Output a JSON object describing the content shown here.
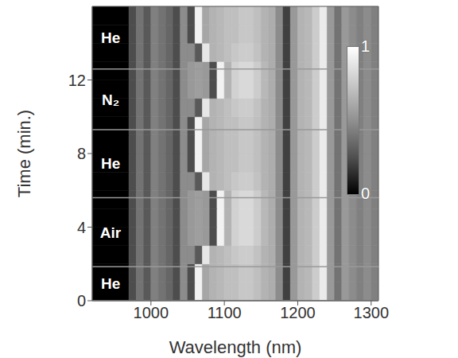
{
  "chart_data": {
    "type": "heatmap",
    "xlabel": "Wavelength (nm)",
    "ylabel": "Time (min.)",
    "xlim": [
      920,
      1310
    ],
    "ylim": [
      0,
      16
    ],
    "xticks": [
      1000,
      1100,
      1200,
      1300
    ],
    "yticks": [
      0,
      4,
      8,
      12
    ],
    "x_bins": [
      920,
      970,
      980,
      990,
      1000,
      1010,
      1020,
      1030,
      1040,
      1050,
      1060,
      1070,
      1080,
      1090,
      1100,
      1110,
      1120,
      1130,
      1140,
      1150,
      1160,
      1170,
      1180,
      1190,
      1200,
      1210,
      1220,
      1230,
      1240,
      1250,
      1260,
      1270,
      1280,
      1290,
      1300,
      1310
    ],
    "y_bins": [
      0,
      1,
      2,
      3,
      4,
      5,
      6,
      7,
      8,
      9,
      10,
      11,
      12,
      13,
      14,
      15,
      16
    ],
    "cells": [
      [
        0,
        0.3,
        0.45,
        0.35,
        0.5,
        0.45,
        0.4,
        0.3,
        0.55,
        0.3,
        0.95,
        0.65,
        0.7,
        0.72,
        0.75,
        0.75,
        0.78,
        0.78,
        0.75,
        0.7,
        0.68,
        0.55,
        0.25,
        0.6,
        0.7,
        0.72,
        0.8,
        0.92,
        0.6,
        0.45,
        0.6,
        0.55,
        0.5,
        0.55,
        0.5
      ],
      [
        0,
        0.3,
        0.45,
        0.35,
        0.5,
        0.45,
        0.4,
        0.3,
        0.55,
        0.3,
        0.95,
        0.65,
        0.7,
        0.72,
        0.75,
        0.75,
        0.78,
        0.78,
        0.75,
        0.7,
        0.68,
        0.55,
        0.25,
        0.6,
        0.7,
        0.72,
        0.8,
        0.92,
        0.6,
        0.45,
        0.6,
        0.55,
        0.5,
        0.55,
        0.5
      ],
      [
        0,
        0.3,
        0.45,
        0.35,
        0.5,
        0.45,
        0.4,
        0.3,
        0.55,
        0.55,
        0.35,
        0.9,
        0.7,
        0.72,
        0.75,
        0.78,
        0.8,
        0.8,
        0.76,
        0.7,
        0.68,
        0.55,
        0.25,
        0.6,
        0.7,
        0.72,
        0.8,
        0.92,
        0.6,
        0.45,
        0.6,
        0.55,
        0.5,
        0.55,
        0.5
      ],
      [
        0,
        0.3,
        0.45,
        0.35,
        0.5,
        0.45,
        0.4,
        0.3,
        0.55,
        0.6,
        0.62,
        0.6,
        0.3,
        0.95,
        0.7,
        0.82,
        0.85,
        0.85,
        0.8,
        0.72,
        0.68,
        0.55,
        0.25,
        0.6,
        0.7,
        0.72,
        0.8,
        0.92,
        0.6,
        0.45,
        0.6,
        0.55,
        0.5,
        0.55,
        0.5
      ],
      [
        0,
        0.3,
        0.45,
        0.35,
        0.5,
        0.45,
        0.4,
        0.3,
        0.55,
        0.6,
        0.62,
        0.6,
        0.3,
        0.95,
        0.7,
        0.82,
        0.85,
        0.85,
        0.8,
        0.72,
        0.68,
        0.55,
        0.25,
        0.6,
        0.7,
        0.72,
        0.8,
        0.92,
        0.6,
        0.45,
        0.6,
        0.55,
        0.5,
        0.55,
        0.5
      ],
      [
        0,
        0.3,
        0.45,
        0.35,
        0.5,
        0.45,
        0.4,
        0.3,
        0.55,
        0.6,
        0.62,
        0.6,
        0.3,
        0.95,
        0.7,
        0.82,
        0.85,
        0.85,
        0.8,
        0.72,
        0.68,
        0.55,
        0.25,
        0.6,
        0.7,
        0.72,
        0.8,
        0.92,
        0.6,
        0.45,
        0.6,
        0.55,
        0.5,
        0.55,
        0.5
      ],
      [
        0,
        0.3,
        0.45,
        0.35,
        0.5,
        0.45,
        0.4,
        0.3,
        0.55,
        0.55,
        0.35,
        0.9,
        0.7,
        0.72,
        0.75,
        0.78,
        0.8,
        0.8,
        0.76,
        0.7,
        0.68,
        0.55,
        0.25,
        0.6,
        0.7,
        0.72,
        0.8,
        0.92,
        0.6,
        0.45,
        0.6,
        0.55,
        0.5,
        0.55,
        0.5
      ],
      [
        0,
        0.3,
        0.45,
        0.35,
        0.5,
        0.45,
        0.4,
        0.3,
        0.55,
        0.3,
        0.95,
        0.65,
        0.7,
        0.72,
        0.75,
        0.75,
        0.78,
        0.78,
        0.75,
        0.7,
        0.68,
        0.55,
        0.25,
        0.6,
        0.7,
        0.72,
        0.8,
        0.92,
        0.6,
        0.45,
        0.6,
        0.55,
        0.5,
        0.55,
        0.5
      ],
      [
        0,
        0.3,
        0.45,
        0.35,
        0.5,
        0.45,
        0.4,
        0.3,
        0.55,
        0.3,
        0.95,
        0.65,
        0.7,
        0.72,
        0.75,
        0.75,
        0.78,
        0.78,
        0.75,
        0.7,
        0.68,
        0.55,
        0.25,
        0.6,
        0.7,
        0.72,
        0.8,
        0.92,
        0.6,
        0.45,
        0.6,
        0.55,
        0.5,
        0.55,
        0.5
      ],
      [
        0,
        0.3,
        0.45,
        0.35,
        0.5,
        0.45,
        0.4,
        0.3,
        0.55,
        0.3,
        0.95,
        0.65,
        0.7,
        0.72,
        0.75,
        0.75,
        0.78,
        0.78,
        0.75,
        0.7,
        0.68,
        0.55,
        0.25,
        0.6,
        0.7,
        0.72,
        0.8,
        0.92,
        0.6,
        0.45,
        0.6,
        0.55,
        0.5,
        0.55,
        0.5
      ],
      [
        0,
        0.3,
        0.45,
        0.35,
        0.5,
        0.45,
        0.4,
        0.3,
        0.55,
        0.55,
        0.35,
        0.9,
        0.7,
        0.72,
        0.75,
        0.78,
        0.8,
        0.8,
        0.76,
        0.7,
        0.68,
        0.55,
        0.25,
        0.6,
        0.7,
        0.72,
        0.8,
        0.92,
        0.6,
        0.45,
        0.6,
        0.55,
        0.5,
        0.55,
        0.5
      ],
      [
        0,
        0.3,
        0.45,
        0.35,
        0.5,
        0.45,
        0.4,
        0.3,
        0.55,
        0.6,
        0.62,
        0.6,
        0.3,
        0.95,
        0.7,
        0.82,
        0.85,
        0.85,
        0.8,
        0.72,
        0.68,
        0.55,
        0.25,
        0.6,
        0.7,
        0.72,
        0.8,
        0.92,
        0.6,
        0.45,
        0.6,
        0.55,
        0.5,
        0.55,
        0.5
      ],
      [
        0,
        0.3,
        0.45,
        0.35,
        0.5,
        0.45,
        0.4,
        0.3,
        0.55,
        0.6,
        0.62,
        0.6,
        0.3,
        0.95,
        0.7,
        0.82,
        0.85,
        0.85,
        0.8,
        0.72,
        0.68,
        0.55,
        0.25,
        0.6,
        0.7,
        0.72,
        0.8,
        0.92,
        0.6,
        0.45,
        0.6,
        0.55,
        0.5,
        0.55,
        0.5
      ],
      [
        0,
        0.3,
        0.45,
        0.35,
        0.5,
        0.45,
        0.4,
        0.3,
        0.55,
        0.55,
        0.35,
        0.9,
        0.7,
        0.72,
        0.75,
        0.78,
        0.8,
        0.8,
        0.76,
        0.7,
        0.68,
        0.55,
        0.25,
        0.6,
        0.7,
        0.72,
        0.8,
        0.92,
        0.6,
        0.45,
        0.6,
        0.55,
        0.5,
        0.55,
        0.5
      ],
      [
        0,
        0.3,
        0.45,
        0.35,
        0.5,
        0.45,
        0.4,
        0.3,
        0.55,
        0.3,
        0.95,
        0.65,
        0.7,
        0.72,
        0.75,
        0.75,
        0.78,
        0.78,
        0.75,
        0.7,
        0.68,
        0.55,
        0.25,
        0.6,
        0.7,
        0.72,
        0.8,
        0.92,
        0.6,
        0.45,
        0.6,
        0.55,
        0.5,
        0.55,
        0.5
      ],
      [
        0,
        0.3,
        0.45,
        0.35,
        0.5,
        0.45,
        0.4,
        0.3,
        0.55,
        0.3,
        0.95,
        0.65,
        0.7,
        0.72,
        0.75,
        0.75,
        0.78,
        0.78,
        0.75,
        0.7,
        0.68,
        0.55,
        0.25,
        0.6,
        0.7,
        0.72,
        0.8,
        0.92,
        0.6,
        0.45,
        0.6,
        0.55,
        0.5,
        0.55,
        0.5
      ]
    ],
    "colorbar": {
      "range": [
        0,
        1
      ],
      "ticks": [
        0,
        1
      ]
    },
    "annotations": [
      {
        "text": "He",
        "start": 0,
        "end": 1.85
      },
      {
        "text": "Air",
        "start": 1.85,
        "end": 5.6
      },
      {
        "text": "He",
        "start": 5.6,
        "end": 9.3
      },
      {
        "text": "N₂",
        "start": 9.3,
        "end": 12.6
      },
      {
        "text": "He",
        "start": 12.6,
        "end": 16
      }
    ]
  }
}
